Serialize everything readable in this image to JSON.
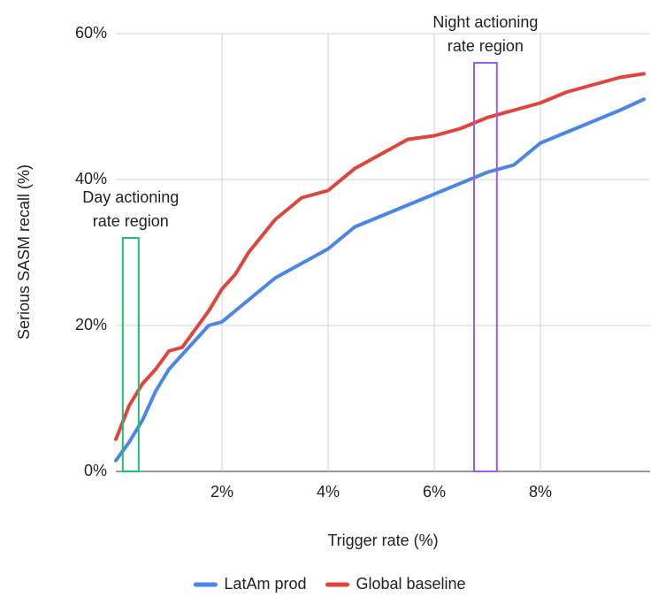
{
  "chart_data": {
    "type": "line",
    "x_label": "Trigger rate (%)",
    "y_label": "Serious SASM recall (%)",
    "xlim": [
      0,
      10
    ],
    "ylim": [
      0,
      60
    ],
    "xticks": [
      {
        "value": 2,
        "label": "2%"
      },
      {
        "value": 4,
        "label": "4%"
      },
      {
        "value": 6,
        "label": "6%"
      },
      {
        "value": 8,
        "label": "8%"
      }
    ],
    "yticks": [
      {
        "value": 0,
        "label": "0%"
      },
      {
        "value": 20,
        "label": "20%"
      },
      {
        "value": 40,
        "label": "40%"
      },
      {
        "value": 60,
        "label": "60%"
      }
    ],
    "grid": true,
    "legend": "bottom",
    "x": [
      0,
      0.25,
      0.5,
      0.75,
      1,
      1.25,
      1.5,
      1.75,
      2,
      2.25,
      2.5,
      3,
      3.5,
      4,
      4.5,
      5,
      5.5,
      6,
      6.5,
      7,
      7.5,
      8,
      8.5,
      9,
      9.5,
      9.95
    ],
    "series": [
      {
        "name": "LatAm prod",
        "color": "#4a86e8",
        "values": [
          1.5,
          4,
          7,
          11,
          14,
          16,
          18,
          20,
          20.5,
          22,
          23.5,
          26.5,
          28.5,
          30.5,
          33.5,
          35,
          36.5,
          38,
          39.5,
          41,
          42,
          45,
          46.5,
          48,
          49.5,
          51
        ]
      },
      {
        "name": "Global baseline",
        "color": "#e0443a",
        "values": [
          4.4,
          9,
          12,
          14,
          16.5,
          17,
          19.5,
          22,
          25,
          27,
          30,
          34.5,
          37.5,
          38.5,
          41.5,
          43.5,
          45.5,
          46,
          47,
          48.5,
          49.5,
          50.5,
          52,
          53,
          54,
          54.5
        ]
      }
    ],
    "annotations": [
      {
        "text": [
          "Day actioning",
          "rate region"
        ],
        "x": [
          0.13,
          0.43
        ],
        "y": [
          0,
          32
        ],
        "color": "#1fbf6f"
      },
      {
        "text": [
          "Night actioning",
          "rate region"
        ],
        "x": [
          6.75,
          7.18
        ],
        "y": [
          0,
          56
        ],
        "color": "#9b5cf0"
      }
    ]
  }
}
